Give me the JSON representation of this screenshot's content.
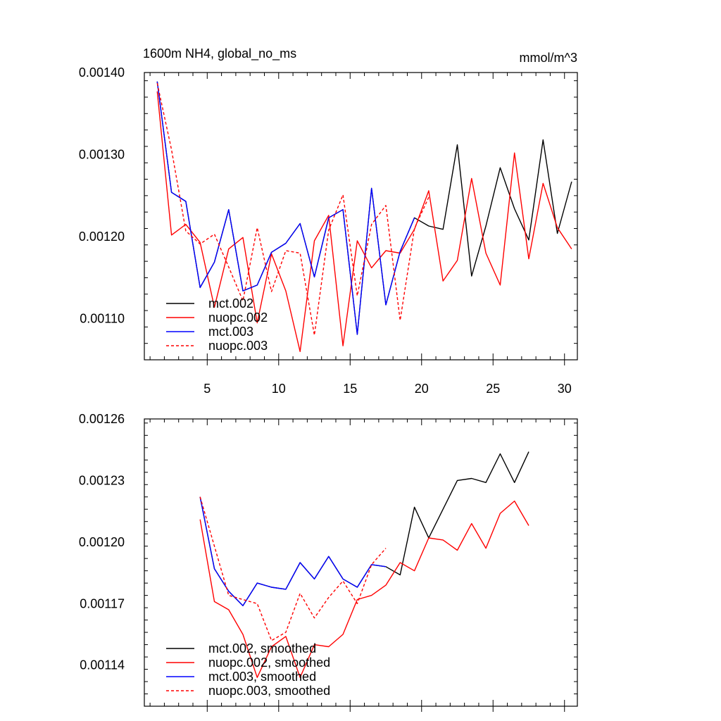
{
  "colors": {
    "mct002": "#000000",
    "nuopc002": "#ff0000",
    "mct003": "#0000ff",
    "nuopc003": "#ff0000"
  },
  "chart_data": [
    {
      "type": "line",
      "title": "1600m NH4, global_no_ms",
      "units": "mmol/m^3",
      "xlim": [
        0.6,
        30.9
      ],
      "ylim": [
        0.00105,
        0.0014
      ],
      "xticks": [
        5,
        10,
        15,
        20,
        25,
        30
      ],
      "xtick_labels": [
        "5",
        "10",
        "15",
        "20",
        "25",
        "30"
      ],
      "yticks": [
        0.0011,
        0.0012,
        0.0013,
        0.0014
      ],
      "ytick_labels": [
        "0.00110",
        "0.00120",
        "0.00130",
        "0.00140"
      ],
      "legend_position": "bottom-left",
      "series": [
        {
          "name": "mct.002",
          "color": "#000000",
          "dash": "solid",
          "x": [
            1.5,
            2.5,
            3.5,
            4.5,
            5.5,
            6.5,
            7.5,
            8.5,
            9.5,
            10.5,
            11.5,
            12.5,
            13.5,
            14.5,
            15.5,
            16.5,
            17.5,
            18.5,
            19.5,
            20.5,
            21.5,
            22.5,
            23.5,
            24.5,
            25.5,
            26.5,
            27.5,
            28.5,
            29.5,
            30.5
          ],
          "y": [
            0.001389,
            0.001254,
            0.001243,
            0.001138,
            0.001169,
            0.001233,
            0.001134,
            0.001141,
            0.001181,
            0.001192,
            0.001216,
            0.001151,
            0.001223,
            0.001233,
            0.001081,
            0.001259,
            0.001117,
            0.001182,
            0.001223,
            0.001213,
            0.001209,
            0.001312,
            0.001152,
            0.001213,
            0.001284,
            0.001234,
            0.001196,
            0.001318,
            0.001204,
            0.001267
          ]
        },
        {
          "name": "nuopc.002",
          "color": "#ff0000",
          "dash": "solid",
          "x": [
            1.5,
            2.5,
            3.5,
            4.5,
            5.5,
            6.5,
            7.5,
            8.5,
            9.5,
            10.5,
            11.5,
            12.5,
            13.5,
            14.5,
            15.5,
            16.5,
            17.5,
            18.5,
            19.5,
            20.5,
            21.5,
            22.5,
            23.5,
            24.5,
            25.5,
            26.5,
            27.5,
            28.5,
            29.5,
            30.5
          ],
          "y": [
            0.001377,
            0.001202,
            0.001215,
            0.001193,
            0.001114,
            0.001185,
            0.001199,
            0.001095,
            0.001179,
            0.001134,
            0.00106,
            0.001195,
            0.001226,
            0.001067,
            0.001195,
            0.001162,
            0.001183,
            0.00118,
            0.001209,
            0.001256,
            0.001146,
            0.001171,
            0.001271,
            0.00118,
            0.001141,
            0.001302,
            0.001173,
            0.001265,
            0.001211,
            0.001185
          ]
        },
        {
          "name": "mct.003",
          "color": "#0000ff",
          "dash": "solid",
          "x": [
            1.5,
            2.5,
            3.5,
            4.5,
            5.5,
            6.5,
            7.5,
            8.5,
            9.5,
            10.5,
            11.5,
            12.5,
            13.5,
            14.5,
            15.5,
            16.5,
            17.5,
            18.5,
            19.5
          ],
          "y": [
            0.001389,
            0.001254,
            0.001243,
            0.001138,
            0.001169,
            0.001233,
            0.001134,
            0.001141,
            0.001181,
            0.001192,
            0.001216,
            0.001151,
            0.001223,
            0.001233,
            0.001081,
            0.001259,
            0.001117,
            0.001182,
            0.001223
          ]
        },
        {
          "name": "nuopc.003",
          "color": "#ff0000",
          "dash": "dashed",
          "x": [
            1.5,
            2.5,
            3.5,
            4.5,
            5.5,
            6.5,
            7.5,
            8.5,
            9.5,
            10.5,
            11.5,
            12.5,
            13.5,
            14.5,
            15.5,
            16.5,
            17.5,
            18.5,
            19.5,
            20.5
          ],
          "y": [
            0.001387,
            0.001306,
            0.001207,
            0.001191,
            0.001203,
            0.001163,
            0.001122,
            0.001211,
            0.001133,
            0.001183,
            0.00118,
            0.00108,
            0.001208,
            0.001251,
            0.001128,
            0.001215,
            0.001238,
            0.001098,
            0.00121,
            0.001248
          ]
        }
      ]
    },
    {
      "type": "line",
      "title": "",
      "units": "",
      "xlim": [
        0.6,
        30.9
      ],
      "ylim": [
        0.00112,
        0.00126
      ],
      "xticks": [
        5,
        10,
        15,
        20,
        25,
        30
      ],
      "xtick_labels": [],
      "yticks": [
        0.00114,
        0.00117,
        0.0012,
        0.00123,
        0.00126
      ],
      "ytick_labels": [
        "0.00114",
        "0.00117",
        "0.00120",
        "0.00123",
        "0.00126"
      ],
      "legend_position": "bottom-left",
      "series": [
        {
          "name": "mct.002, smoothed",
          "color": "#000000",
          "dash": "solid",
          "x": [
            4.5,
            5.5,
            6.5,
            7.5,
            8.5,
            9.5,
            10.5,
            11.5,
            12.5,
            13.5,
            14.5,
            15.5,
            16.5,
            17.5,
            18.5,
            19.5,
            20.5,
            21.5,
            22.5,
            23.5,
            24.5,
            25.5,
            26.5,
            27.5
          ],
          "y": [
            0.001222,
            0.001187,
            0.001176,
            0.001169,
            0.00118,
            0.001178,
            0.001177,
            0.00119,
            0.001182,
            0.001193,
            0.001182,
            0.001178,
            0.001189,
            0.001188,
            0.001184,
            0.001217,
            0.001202,
            0.001216,
            0.00123,
            0.001231,
            0.001229,
            0.001243,
            0.001229,
            0.001244
          ]
        },
        {
          "name": "nuopc.002, smoothed",
          "color": "#ff0000",
          "dash": "solid",
          "x": [
            4.5,
            5.5,
            6.5,
            7.5,
            8.5,
            9.5,
            10.5,
            11.5,
            12.5,
            13.5,
            14.5,
            15.5,
            16.5,
            17.5,
            18.5,
            19.5,
            20.5,
            21.5,
            22.5,
            23.5,
            24.5,
            25.5,
            26.5,
            27.5
          ],
          "y": [
            0.001211,
            0.001171,
            0.001167,
            0.001155,
            0.001134,
            0.001149,
            0.001154,
            0.001134,
            0.00115,
            0.001149,
            0.001155,
            0.001172,
            0.001174,
            0.001179,
            0.00119,
            0.001186,
            0.001202,
            0.001201,
            0.001196,
            0.001209,
            0.001197,
            0.001214,
            0.00122,
            0.001208
          ]
        },
        {
          "name": "mct.003, smoothed",
          "color": "#0000ff",
          "dash": "solid",
          "x": [
            4.5,
            5.5,
            6.5,
            7.5,
            8.5,
            9.5,
            10.5,
            11.5,
            12.5,
            13.5,
            14.5,
            15.5,
            16.5,
            17.5
          ],
          "y": [
            0.001222,
            0.001187,
            0.001176,
            0.001169,
            0.00118,
            0.001178,
            0.001177,
            0.00119,
            0.001182,
            0.001193,
            0.001182,
            0.001178,
            0.001189,
            0.001188
          ]
        },
        {
          "name": "nuopc.003, smoothed",
          "color": "#ff0000",
          "dash": "dashed",
          "x": [
            4.5,
            5.5,
            6.5,
            7.5,
            8.5,
            9.5,
            10.5,
            11.5,
            12.5,
            13.5,
            14.5,
            15.5,
            16.5,
            17.5
          ],
          "y": [
            0.001222,
            0.001198,
            0.001174,
            0.001172,
            0.00117,
            0.001152,
            0.001156,
            0.001175,
            0.001163,
            0.001173,
            0.001181,
            0.00117,
            0.001189,
            0.001197
          ]
        }
      ]
    }
  ]
}
